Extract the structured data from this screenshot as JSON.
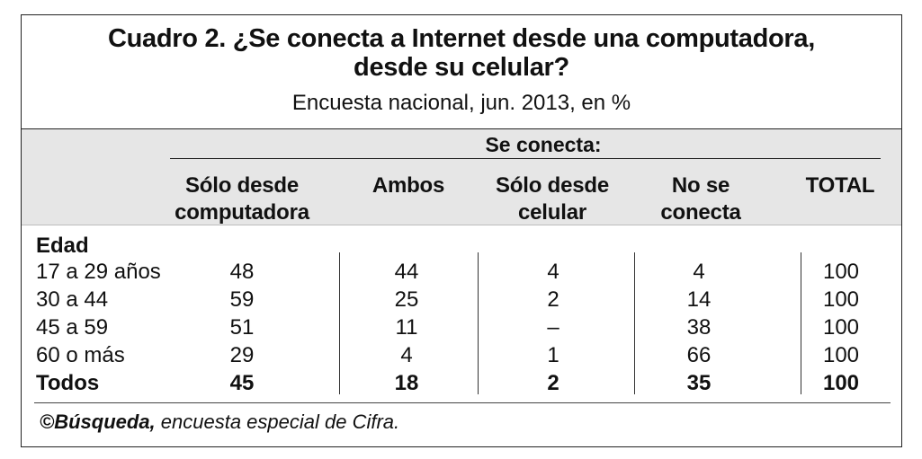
{
  "title": {
    "line1": "Cuadro 2. ¿Se conecta a Internet desde una computadora,",
    "line2": "desde su celular?",
    "subtitle": "Encuesta nacional, jun. 2013, en %"
  },
  "header": {
    "group_label": "Se conecta:",
    "columns": [
      {
        "line1": "Sólo desde",
        "line2": "computadora"
      },
      {
        "line1": "Ambos",
        "line2": ""
      },
      {
        "line1": "Sólo desde",
        "line2": "celular"
      },
      {
        "line1": "No se",
        "line2": "conecta"
      },
      {
        "line1": "",
        "line2": "TOTAL"
      }
    ]
  },
  "table": {
    "group_heading": "Edad",
    "rows": [
      {
        "label": "17 a 29 años",
        "values": [
          "48",
          "44",
          "4",
          "4",
          "100"
        ]
      },
      {
        "label": "30 a 44",
        "values": [
          "59",
          "25",
          "2",
          "14",
          "100"
        ]
      },
      {
        "label": "45 a 59",
        "values": [
          "51",
          "11",
          "–",
          "38",
          "100"
        ]
      },
      {
        "label": "60 o más",
        "values": [
          "29",
          "4",
          "1",
          "66",
          "100"
        ]
      },
      {
        "label": "Todos",
        "values": [
          "45",
          "18",
          "2",
          "35",
          "100"
        ]
      }
    ]
  },
  "footer": {
    "source_name": "©Búsqueda,",
    "source_rest": " encuesta especial de Cifra."
  }
}
